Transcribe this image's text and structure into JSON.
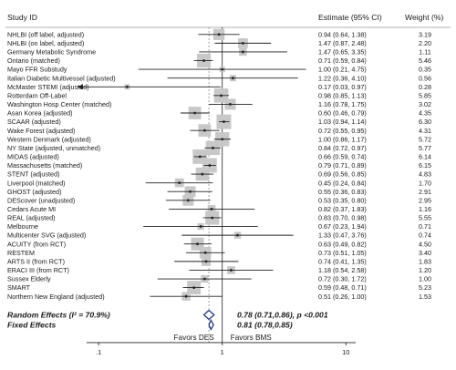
{
  "header": {
    "study_id": "Study ID",
    "estimate": "Estimate (95% CI)",
    "weight": "Weight (%)"
  },
  "colors": {
    "box": "#c8c8c8",
    "line": "#222222",
    "ref_dash": "#888888",
    "diamond": "#1f3a93"
  },
  "chart_data": {
    "type": "forest",
    "x_scale": "log",
    "xlim": [
      0.08,
      12
    ],
    "ticks": [
      {
        "value": 0.1,
        "label": ".1"
      },
      {
        "value": 1,
        "label": "1"
      },
      {
        "value": 10,
        "label": "10"
      }
    ],
    "reference_line": 1,
    "pooled_line": 0.78,
    "x_annotations": {
      "left": "Favors DES",
      "right": "Favors BMS"
    },
    "studies": [
      {
        "name": "NHLBI (off label, adjusted)",
        "est": 0.94,
        "lo": 0.64,
        "hi": 1.38,
        "weight": 3.19,
        "text": "0.94 (0.64, 1.38)",
        "wtext": "3.19"
      },
      {
        "name": "NHLBI (on label, adjusted)",
        "est": 1.47,
        "lo": 0.87,
        "hi": 2.48,
        "weight": 2.2,
        "text": "1.47 (0.87, 2.48)",
        "wtext": "2.20"
      },
      {
        "name": "Germany Metabolic Syndrome",
        "est": 1.47,
        "lo": 0.65,
        "hi": 3.35,
        "weight": 1.11,
        "text": "1.47 (0.65, 3.35)",
        "wtext": "1.11"
      },
      {
        "name": "Ontario (matched)",
        "est": 0.71,
        "lo": 0.59,
        "hi": 0.84,
        "weight": 5.46,
        "text": "0.71 (0.59, 0.84)",
        "wtext": "5.46"
      },
      {
        "name": "Mayo FFR Substudy",
        "est": 1.0,
        "lo": 0.21,
        "hi": 4.75,
        "weight": 0.35,
        "text": "1.00 (0.21, 4.75)",
        "wtext": "0.35"
      },
      {
        "name": "Italian Diabetic Multivessel (adjusted)",
        "est": 1.22,
        "lo": 0.36,
        "hi": 4.1,
        "weight": 0.56,
        "text": "1.22 (0.36, 4.10)",
        "wtext": "0.56"
      },
      {
        "name": "McMaster STEMI (adjusted)",
        "est": 0.17,
        "lo": 0.03,
        "hi": 0.97,
        "weight": 0.28,
        "text": "0.17 (0.03, 0.97)",
        "wtext": "0.28",
        "arrow_left": true
      },
      {
        "name": "Rotterdam Off-Label",
        "est": 0.98,
        "lo": 0.85,
        "hi": 1.13,
        "weight": 5.85,
        "text": "0.98 (0.85, 1.13)",
        "wtext": "5.85"
      },
      {
        "name": "Washington Hosp Center (matched)",
        "est": 1.16,
        "lo": 0.78,
        "hi": 1.75,
        "weight": 3.02,
        "text": "1.16 (0.78, 1.75)",
        "wtext": "3.02"
      },
      {
        "name": "Asan Korea (adjusted)",
        "est": 0.6,
        "lo": 0.46,
        "hi": 0.79,
        "weight": 4.35,
        "text": "0.60 (0.46, 0.79)",
        "wtext": "4.35"
      },
      {
        "name": "SCAAR (adjusted)",
        "est": 1.03,
        "lo": 0.94,
        "hi": 1.14,
        "weight": 6.3,
        "text": "1.03 (0.94, 1.14)",
        "wtext": "6.30"
      },
      {
        "name": "Wake Forest (adjusted)",
        "est": 0.72,
        "lo": 0.55,
        "hi": 0.95,
        "weight": 4.31,
        "text": "0.72 (0.55, 0.95)",
        "wtext": "4.31"
      },
      {
        "name": "Western Denmark (adjusted)",
        "est": 1.0,
        "lo": 0.86,
        "hi": 1.17,
        "weight": 5.72,
        "text": "1.00 (0.86, 1.17)",
        "wtext": "5.72"
      },
      {
        "name": "NY State (adjusted, unmatched)",
        "est": 0.84,
        "lo": 0.72,
        "hi": 0.97,
        "weight": 5.77,
        "text": "0.84 (0.72, 0.97)",
        "wtext": "5.77"
      },
      {
        "name": "MIDAS (adjusted)",
        "est": 0.66,
        "lo": 0.59,
        "hi": 0.74,
        "weight": 6.14,
        "text": "0.66 (0.59, 0.74)",
        "wtext": "6.14"
      },
      {
        "name": "Massachusetts (matched)",
        "est": 0.79,
        "lo": 0.71,
        "hi": 0.89,
        "weight": 6.15,
        "text": "0.79 (0.71, 0.89)",
        "wtext": "6.15"
      },
      {
        "name": "STENT (adjusted)",
        "est": 0.69,
        "lo": 0.56,
        "hi": 0.85,
        "weight": 4.83,
        "text": "0.69 (0.56, 0.85)",
        "wtext": "4.83"
      },
      {
        "name": "Liverpool (matched)",
        "est": 0.45,
        "lo": 0.24,
        "hi": 0.84,
        "weight": 1.7,
        "text": "0.45 (0.24, 0.84)",
        "wtext": "1.70"
      },
      {
        "name": "GHOST (adjusted)",
        "est": 0.55,
        "lo": 0.36,
        "hi": 0.83,
        "weight": 2.91,
        "text": "0.55 (0.36, 0.83)",
        "wtext": "2.91"
      },
      {
        "name": "DEScover (unadjusted)",
        "est": 0.53,
        "lo": 0.35,
        "hi": 0.8,
        "weight": 2.95,
        "text": "0.53 (0.35, 0.80)",
        "wtext": "2.95"
      },
      {
        "name": "Cedars Acute MI",
        "est": 0.82,
        "lo": 0.37,
        "hi": 1.83,
        "weight": 1.16,
        "text": "0.82 (0.37, 1.83)",
        "wtext": "1.16"
      },
      {
        "name": "REAL (adjusted)",
        "est": 0.83,
        "lo": 0.7,
        "hi": 0.98,
        "weight": 5.55,
        "text": "0.83 (0.70, 0.98)",
        "wtext": "5.55"
      },
      {
        "name": "Melbourne",
        "est": 0.67,
        "lo": 0.23,
        "hi": 1.94,
        "weight": 0.71,
        "text": "0.67 (0.23, 1.94)",
        "wtext": "0.71"
      },
      {
        "name": "Multicenter SVG (adjusted)",
        "est": 1.33,
        "lo": 0.47,
        "hi": 3.76,
        "weight": 0.74,
        "text": "1.33 (0.47, 3.76)",
        "wtext": "0.74"
      },
      {
        "name": "ACUITY (from RCT)",
        "est": 0.63,
        "lo": 0.49,
        "hi": 0.82,
        "weight": 4.5,
        "text": "0.63 (0.49, 0.82)",
        "wtext": "4.50"
      },
      {
        "name": "RESTEM",
        "est": 0.73,
        "lo": 0.51,
        "hi": 1.05,
        "weight": 3.4,
        "text": "0.73 (0.51, 1.05)",
        "wtext": "3.40"
      },
      {
        "name": "ARTS II (from RCT)",
        "est": 0.74,
        "lo": 0.41,
        "hi": 1.35,
        "weight": 1.83,
        "text": "0.74 (0.41, 1.35)",
        "wtext": "1.83"
      },
      {
        "name": "ERACI III (from RCT)",
        "est": 1.18,
        "lo": 0.54,
        "hi": 2.58,
        "weight": 1.2,
        "text": "1.18 (0.54, 2.58)",
        "wtext": "1.20"
      },
      {
        "name": "Sussex Elderly",
        "est": 0.72,
        "lo": 0.3,
        "hi": 1.72,
        "weight": 1.0,
        "text": "0.72 (0.30, 1.72)",
        "wtext": "1.00"
      },
      {
        "name": "SMART",
        "est": 0.59,
        "lo": 0.48,
        "hi": 0.71,
        "weight": 5.23,
        "text": "0.59 (0.48, 0.71)",
        "wtext": "5.23"
      },
      {
        "name": "Northern New England (adjusted)",
        "est": 0.51,
        "lo": 0.26,
        "hi": 1.0,
        "weight": 1.53,
        "text": "0.51 (0.26, 1.00)",
        "wtext": "1.53"
      }
    ],
    "summaries": [
      {
        "name": "Random Effects (I² = 70.9%)",
        "est": 0.78,
        "lo": 0.71,
        "hi": 0.86,
        "text": "0.78 (0.71,0.86), p <0.001"
      },
      {
        "name": "Fixed Effects",
        "est": 0.81,
        "lo": 0.78,
        "hi": 0.85,
        "text": "0.81 (0.78,0.85)"
      }
    ]
  }
}
